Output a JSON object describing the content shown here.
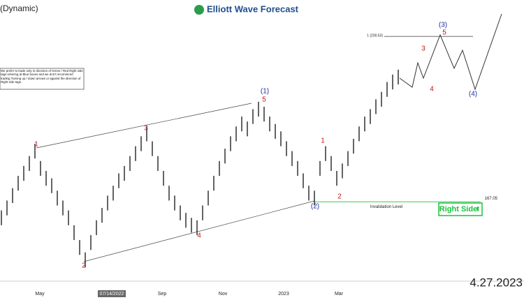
{
  "chart_data": {
    "type": "range",
    "title": "Elliott Wave Forecast",
    "subtitle": "(Dynamic)",
    "note": "We prefer to trade only in direction of Green / Red Right side tags entering at Blue boxes and we don't recommend trading Turning up / down arrows or against the direction of Right side tags.",
    "date": "4.27.2023",
    "x_labels": [
      "May",
      "07/14/2022",
      "Sep",
      "Nov",
      "2023",
      "Mar"
    ],
    "color": "#222222",
    "ylim": [
      151.4,
      207.9
    ],
    "highs": [
      165.3,
      167.3,
      169.8,
      172.3,
      174.3,
      176.3,
      178.8,
      175.3,
      173.3,
      171.8,
      169.3,
      167.3,
      165.3,
      162.3,
      159.3,
      156.8,
      160.3,
      163.3,
      165.8,
      168.3,
      170.3,
      172.8,
      174.3,
      176.3,
      178.3,
      180.3,
      182.3,
      179.3,
      176.3,
      173.3,
      170.3,
      168.3,
      166.3,
      164.8,
      163.8,
      163.3,
      166.3,
      169.3,
      172.3,
      175.3,
      177.8,
      180.3,
      182.3,
      184.3,
      183.3,
      185.8,
      187.3,
      186.3,
      184.3,
      182.8,
      181.3,
      179.3,
      177.3,
      175.3,
      172.8,
      170.3,
      169.3,
      175.3,
      178.3,
      176.3,
      173.3,
      174.8,
      177.3,
      179.8,
      182.3,
      184.3,
      185.8,
      187.8,
      189.3,
      191.3,
      192.8,
      193.8
    ],
    "lows": [
      162.3,
      164.3,
      166.8,
      169.3,
      171.3,
      173.3,
      175.8,
      172.3,
      170.3,
      168.8,
      166.3,
      164.3,
      162.3,
      159.3,
      156.3,
      153.8,
      157.3,
      160.3,
      162.8,
      165.3,
      167.3,
      169.8,
      171.3,
      173.3,
      175.3,
      177.3,
      179.3,
      176.3,
      173.3,
      170.3,
      167.3,
      165.3,
      163.3,
      161.8,
      160.8,
      160.3,
      163.3,
      166.3,
      169.3,
      172.3,
      174.8,
      177.3,
      179.3,
      181.3,
      180.3,
      182.8,
      184.3,
      183.3,
      181.3,
      179.8,
      178.3,
      176.3,
      174.3,
      172.3,
      169.8,
      167.3,
      166.3,
      172.3,
      175.3,
      173.3,
      170.3,
      171.8,
      174.3,
      176.8,
      179.3,
      181.3,
      182.8,
      184.8,
      186.3,
      188.3,
      189.8,
      190.8
    ],
    "wave_labels": [
      "1",
      "2",
      "3",
      "4",
      "(1)",
      "5",
      "(2)",
      "1",
      "2",
      "3",
      "4",
      "(3)",
      "5",
      "(4)"
    ],
    "invalidation": {
      "value": 167.05,
      "text": "Invalidation Level"
    },
    "target": {
      "value": 200.53,
      "label": "1 (200.53)"
    },
    "right_side": "Right Side"
  }
}
